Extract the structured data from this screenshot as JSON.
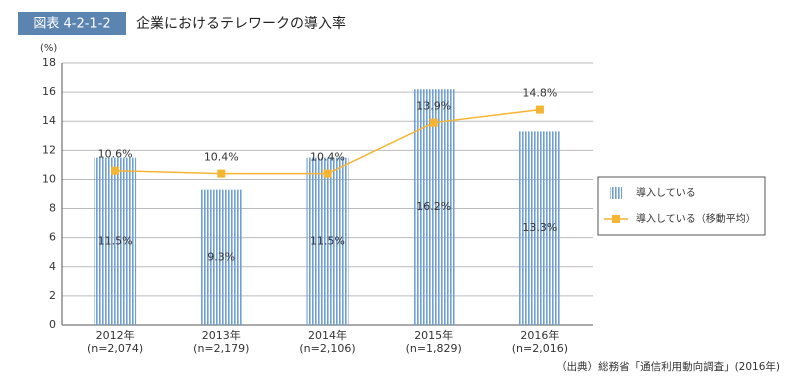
{
  "header": {
    "label": "図表 4-2-1-2"
  },
  "chart_data": {
    "type": "bar",
    "title": "企業におけるテレワークの導入率",
    "y_unit": "(%)",
    "categories": [
      "2012年",
      "2013年",
      "2014年",
      "2015年",
      "2016年"
    ],
    "categories_sub": [
      "(n=2,074)",
      "(n=2,179)",
      "(n=2,106)",
      "(n=1,829)",
      "(n=2,016)"
    ],
    "series": [
      {
        "name": "導入している",
        "type": "bar",
        "color": "#6f9fd3",
        "values": [
          11.5,
          9.3,
          11.5,
          16.2,
          13.3
        ],
        "value_labels": [
          "11.5%",
          "9.3%",
          "11.5%",
          "16.2%",
          "13.3%"
        ]
      },
      {
        "name": "導入している（移動平均）",
        "type": "line",
        "color": "#f5b432",
        "values": [
          10.6,
          10.4,
          10.4,
          13.9,
          14.8
        ],
        "value_labels": [
          "10.6%",
          "10.4%",
          "10.4%",
          "13.9%",
          "14.8%"
        ]
      }
    ],
    "ylim": [
      0,
      18
    ],
    "yticks": [
      0,
      2,
      4,
      6,
      8,
      10,
      12,
      14,
      16,
      18
    ],
    "grid": true,
    "legend": "right"
  },
  "source": "（出典）総務省「通信利用動向調査」(2016年)"
}
